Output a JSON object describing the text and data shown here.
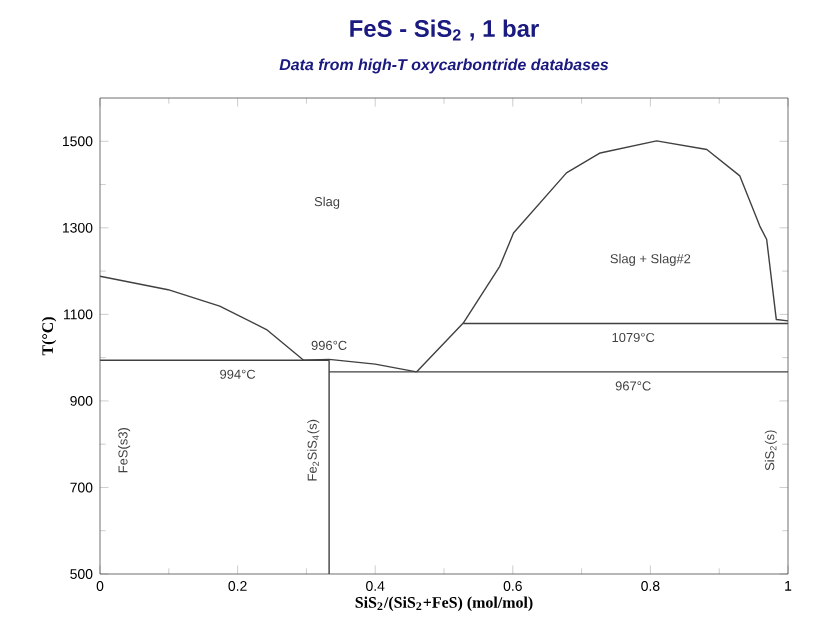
{
  "chart_data": {
    "type": "line",
    "title": "FeS - SiS$_{2}$ , 1 bar",
    "subtitle": "Data from high-T oxycarbontride databases",
    "xlabel": "SiS$_{2}$/(SiS$_{2}$+FeS) (mol/mol)",
    "ylabel": "T(°C)",
    "xlim": [
      0,
      1
    ],
    "ylim": [
      500,
      1600
    ],
    "xticks": [
      0,
      0.2,
      0.4,
      0.6,
      0.8,
      1
    ],
    "yticks": [
      500,
      700,
      900,
      1100,
      1300,
      1500
    ],
    "grid": false,
    "series": [
      {
        "color": "#404040",
        "x": [
          0,
          0.099,
          0.174,
          0.242,
          0.296
        ],
        "values": [
          1188,
          1157,
          1119,
          1065,
          994
        ]
      },
      {
        "color": "#404040",
        "x": [
          0.296,
          0.333,
          0.4,
          0.46
        ],
        "values": [
          994,
          996,
          985,
          967
        ]
      },
      {
        "color": "#404040",
        "x": [
          0.46,
          0.528,
          0.581,
          0.601,
          0.678,
          0.727,
          0.809,
          0.882,
          0.93,
          0.959,
          0.969,
          0.983,
          1
        ],
        "values": [
          967,
          1080,
          1211,
          1288,
          1427,
          1473,
          1501,
          1481,
          1420,
          1304,
          1273,
          1088,
          1085
        ]
      },
      {
        "color": "#404040",
        "x": [
          0,
          0.333
        ],
        "values": [
          994,
          994
        ]
      },
      {
        "color": "#404040",
        "x": [
          0.333,
          1
        ],
        "values": [
          967,
          967
        ]
      },
      {
        "color": "#404040",
        "x": [
          0.528,
          1
        ],
        "values": [
          1079,
          1079
        ]
      },
      {
        "color": "#404040",
        "x": [
          0.333,
          0.333
        ],
        "values": [
          500,
          994
        ]
      }
    ],
    "annotations": [
      "Slag",
      "Slag + Slag#2",
      {
        "text": "994°C",
        "x": 0.2,
        "y": 994
      },
      {
        "text": "996°C",
        "x": 0.333,
        "y": 996
      },
      {
        "text": "1079°C",
        "x": 0.775,
        "y": 1079
      },
      {
        "text": "967°C",
        "x": 0.775,
        "y": 967
      },
      "FeS(s3)",
      "Fe$_{2}$SiS$_{4}$(s)",
      "SiS$_{2}$(s)"
    ]
  }
}
